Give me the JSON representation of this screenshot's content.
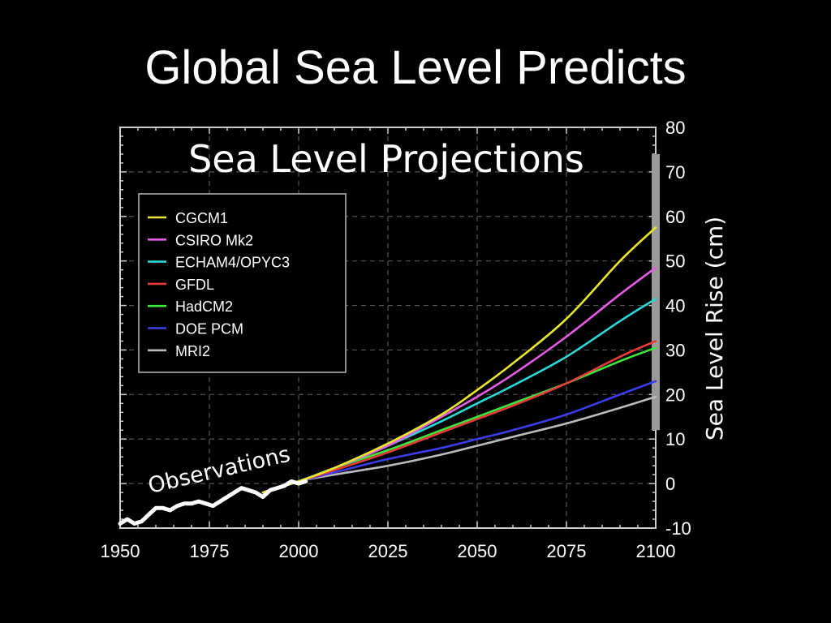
{
  "slide": {
    "title": "Global Sea Level Predicts"
  },
  "chart_data": {
    "type": "line",
    "title": "Sea Level Projections",
    "xlabel": "",
    "ylabel": "Sea Level Rise (cm)",
    "xlim": [
      1950,
      2100
    ],
    "ylim": [
      -10,
      80
    ],
    "x_ticks": [
      1950,
      1975,
      2000,
      2025,
      2050,
      2075,
      2100
    ],
    "y_ticks": [
      -10,
      0,
      10,
      20,
      30,
      40,
      50,
      60,
      70,
      80
    ],
    "grid": true,
    "legend_position": "top-left",
    "colors": {
      "observations": "#ffffff",
      "range_bar": "#9a9a9a"
    },
    "range_bar": {
      "x": 2100,
      "y_range": [
        12,
        74
      ]
    },
    "annotations": [
      {
        "text": "Observations"
      }
    ],
    "observations": {
      "name": "Observations",
      "x": [
        1950,
        1952,
        1954,
        1956,
        1958,
        1960,
        1962,
        1964,
        1966,
        1968,
        1970,
        1972,
        1974,
        1976,
        1978,
        1980,
        1982,
        1984,
        1986,
        1988,
        1990,
        1992,
        1994,
        1996,
        1998,
        2000,
        2002
      ],
      "y": [
        -9,
        -8,
        -9,
        -8.5,
        -7,
        -5.5,
        -5.5,
        -6,
        -5,
        -4.5,
        -4.5,
        -4,
        -4.5,
        -5,
        -4,
        -3,
        -2,
        -1,
        -1.5,
        -2,
        -3,
        -1.5,
        -1,
        -0.5,
        0.5,
        0,
        0.5
      ]
    },
    "series": [
      {
        "name": "CGCM1",
        "color": "#e8e82a",
        "x": [
          1990,
          2000,
          2010,
          2025,
          2040,
          2050,
          2060,
          2075,
          2090,
          2100
        ],
        "y": [
          -2,
          0.5,
          3.5,
          9,
          15.5,
          21,
          27,
          37,
          50,
          57.5
        ]
      },
      {
        "name": "CSIRO Mk2",
        "color": "#e85ce8",
        "x": [
          1990,
          2000,
          2010,
          2025,
          2040,
          2050,
          2060,
          2075,
          2090,
          2100
        ],
        "y": [
          -2,
          0.5,
          3.5,
          8.5,
          15,
          19.5,
          24.5,
          33,
          42.5,
          48.5
        ]
      },
      {
        "name": "ECHAM4/OPYC3",
        "color": "#2ad8d8",
        "x": [
          1990,
          2000,
          2010,
          2025,
          2040,
          2050,
          2060,
          2075,
          2090,
          2100
        ],
        "y": [
          -2,
          0.5,
          3.5,
          8.5,
          14,
          18,
          22,
          28.5,
          36.5,
          41.5
        ]
      },
      {
        "name": "GFDL",
        "color": "#e83c3c",
        "x": [
          1990,
          2000,
          2010,
          2025,
          2040,
          2050,
          2060,
          2075,
          2090,
          2100
        ],
        "y": [
          -2,
          0.5,
          3,
          7,
          11.5,
          14.5,
          17.5,
          22.5,
          28.5,
          32
        ]
      },
      {
        "name": "HadCM2",
        "color": "#3ce83c",
        "x": [
          1990,
          2000,
          2010,
          2025,
          2040,
          2050,
          2060,
          2075,
          2090,
          2100
        ],
        "y": [
          -2,
          0.5,
          3.5,
          7.5,
          12,
          15,
          18,
          22.5,
          27.5,
          30.5
        ]
      },
      {
        "name": "DOE PCM",
        "color": "#3c3ce8",
        "x": [
          1990,
          2000,
          2010,
          2025,
          2040,
          2050,
          2060,
          2075,
          2090,
          2100
        ],
        "y": [
          -2,
          0.5,
          2.5,
          5.5,
          8,
          10,
          12,
          15.5,
          20,
          23
        ]
      },
      {
        "name": "MRI2",
        "color": "#bbbbbb",
        "x": [
          1990,
          2000,
          2010,
          2025,
          2040,
          2050,
          2060,
          2075,
          2090,
          2100
        ],
        "y": [
          -2,
          0.5,
          2,
          4,
          6.5,
          8.5,
          10.5,
          13.5,
          17,
          19.5
        ]
      }
    ]
  }
}
